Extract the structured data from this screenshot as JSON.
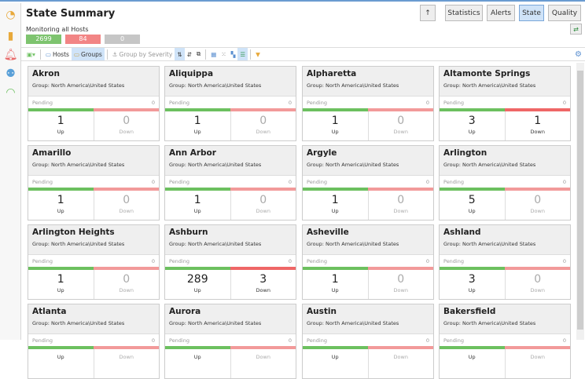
{
  "sidebar": {
    "icons": [
      "pie-chart-icon",
      "bar-chart-icon",
      "alarm-bell-icon",
      "hosts-status-icon",
      "gauge-icon"
    ]
  },
  "header": {
    "title": "State Summary",
    "subtitle": "Monitoring all Hosts",
    "counts": {
      "up": "2699",
      "down": "84",
      "pending": "0"
    }
  },
  "nav": {
    "up_label": "↑",
    "tabs": [
      "Statistics",
      "Alerts",
      "State",
      "Quality"
    ],
    "active": "State"
  },
  "toolbar": {
    "hosts": "Hosts",
    "groups": "Groups",
    "group_by_severity": "Group by Severity"
  },
  "colors": {
    "up": "#6cc05f",
    "down": "#f29a9a",
    "down_strong": "#ef6767",
    "pending": "#c6c6c6",
    "accent": "#cfe3f8"
  },
  "cards": [
    {
      "name": "Akron",
      "group": "Group: North America\\United States",
      "pending": "0",
      "up": "1",
      "down": "0"
    },
    {
      "name": "Aliquippa",
      "group": "Group: North America\\United States",
      "pending": "0",
      "up": "1",
      "down": "0"
    },
    {
      "name": "Alpharetta",
      "group": "Group: North America\\United States",
      "pending": "0",
      "up": "1",
      "down": "0"
    },
    {
      "name": "Altamonte Springs",
      "group": "Group: North America\\United States",
      "pending": "0",
      "up": "3",
      "down": "1"
    },
    {
      "name": "Amarillo",
      "group": "Group: North America\\United States",
      "pending": "0",
      "up": "1",
      "down": "0"
    },
    {
      "name": "Ann Arbor",
      "group": "Group: North America\\United States",
      "pending": "0",
      "up": "1",
      "down": "0"
    },
    {
      "name": "Argyle",
      "group": "Group: North America\\United States",
      "pending": "0",
      "up": "1",
      "down": "0"
    },
    {
      "name": "Arlington",
      "group": "Group: North America\\United States",
      "pending": "0",
      "up": "5",
      "down": "0"
    },
    {
      "name": "Arlington Heights",
      "group": "Group: North America\\United States",
      "pending": "0",
      "up": "1",
      "down": "0"
    },
    {
      "name": "Ashburn",
      "group": "Group: North America\\United States",
      "pending": "0",
      "up": "289",
      "down": "3"
    },
    {
      "name": "Asheville",
      "group": "Group: North America\\United States",
      "pending": "0",
      "up": "1",
      "down": "0"
    },
    {
      "name": "Ashland",
      "group": "Group: North America\\United States",
      "pending": "0",
      "up": "3",
      "down": "0"
    },
    {
      "name": "Atlanta",
      "group": "Group: North America\\United States",
      "pending": "0",
      "up": "",
      "down": ""
    },
    {
      "name": "Aurora",
      "group": "Group: North America\\United States",
      "pending": "0",
      "up": "",
      "down": ""
    },
    {
      "name": "Austin",
      "group": "Group: North America\\United States",
      "pending": "0",
      "up": "",
      "down": ""
    },
    {
      "name": "Bakersfield",
      "group": "Group: North America\\United States",
      "pending": "0",
      "up": "",
      "down": ""
    }
  ],
  "labels": {
    "pending": "Pending",
    "up": "Up",
    "down": "Down"
  }
}
